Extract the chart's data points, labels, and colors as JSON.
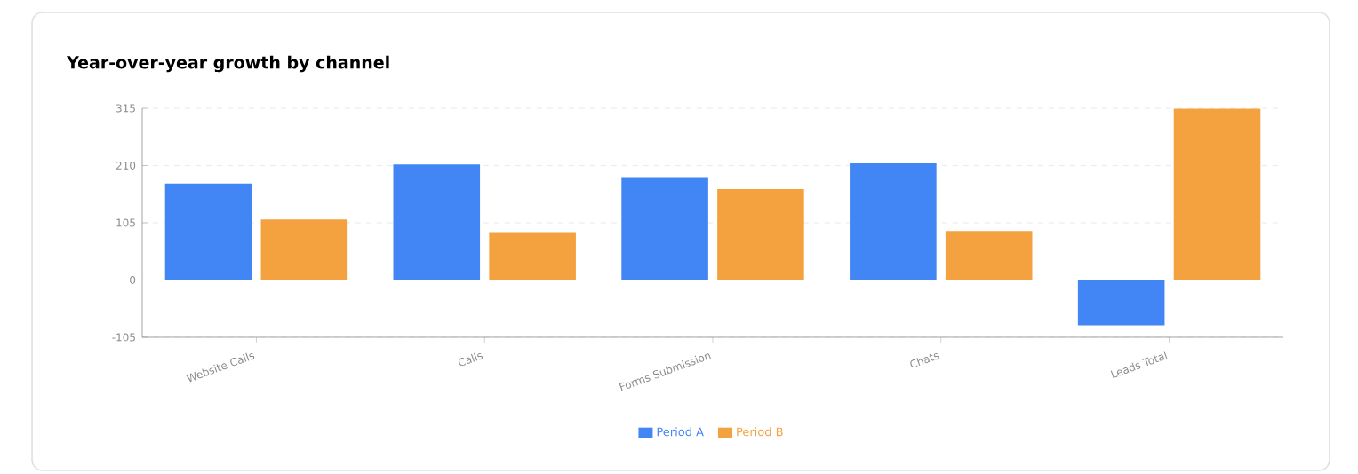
{
  "chart_data": {
    "type": "bar",
    "title": "Year-over-year growth by channel",
    "categories": [
      "Website Calls",
      "Calls",
      "Forms Submission",
      "Chats",
      "Leads Total"
    ],
    "series": [
      {
        "name": "Period A",
        "color": "#4285f4",
        "values": [
          177,
          212,
          189,
          214,
          -83
        ]
      },
      {
        "name": "Period B",
        "color": "#f4a240",
        "values": [
          111,
          88,
          167,
          90,
          314
        ]
      }
    ],
    "ylim": [
      -105,
      315
    ],
    "yticks": [
      -105,
      0,
      105,
      210,
      315
    ],
    "grid": "y",
    "legend": "bottom"
  }
}
